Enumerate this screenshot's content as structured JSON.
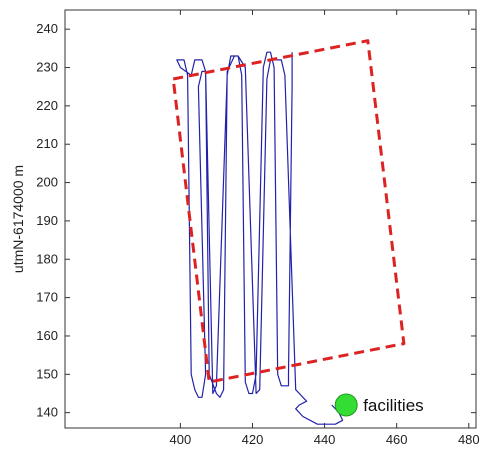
{
  "chart_data": {
    "type": "line",
    "title": "",
    "xlabel": "",
    "ylabel": "utmN-6174000 m",
    "xlim": [
      368,
      482
    ],
    "ylim": [
      136,
      245
    ],
    "xticks": [
      400,
      420,
      440,
      460,
      480
    ],
    "yticks": [
      140,
      150,
      160,
      170,
      180,
      190,
      200,
      210,
      220,
      230,
      240
    ],
    "grid": false,
    "colors": {
      "track": "#2222aa",
      "boundary": "#dd2222",
      "facility": "#33dd33"
    },
    "series": [
      {
        "kind": "survey-track",
        "x": [
          442,
          444,
          445,
          443,
          438,
          434,
          432,
          433,
          435,
          433,
          432,
          429,
          428,
          425,
          424,
          422,
          421,
          418,
          416,
          414,
          413,
          410,
          409,
          407,
          406,
          404,
          403,
          400,
          399,
          401,
          402,
          403,
          404,
          405,
          406,
          407,
          405,
          406,
          407,
          408,
          410,
          411,
          412,
          413,
          415,
          416,
          417,
          418,
          419,
          420,
          421,
          423,
          424,
          425,
          426,
          427,
          428,
          430,
          430,
          431,
          431
        ],
        "y": [
          142,
          140,
          138,
          137,
          137,
          139,
          141,
          142,
          143,
          145,
          146,
          228,
          232,
          232,
          227,
          146,
          145,
          230,
          233,
          233,
          228,
          147,
          145,
          229,
          232,
          232,
          228,
          230,
          232,
          232,
          228,
          150,
          146,
          144,
          144,
          150,
          225,
          229,
          229,
          150,
          145,
          144,
          146,
          229,
          233,
          233,
          228,
          148,
          145,
          145,
          150,
          230,
          234,
          234,
          230,
          150,
          147,
          147,
          150,
          225,
          234
        ]
      },
      {
        "kind": "boundary",
        "x": [
          398,
          452,
          462,
          408,
          398
        ],
        "y": [
          227,
          237,
          158,
          148,
          227
        ]
      }
    ],
    "annotations": [
      {
        "label": "facilities",
        "x": 446,
        "y": 142
      }
    ]
  }
}
